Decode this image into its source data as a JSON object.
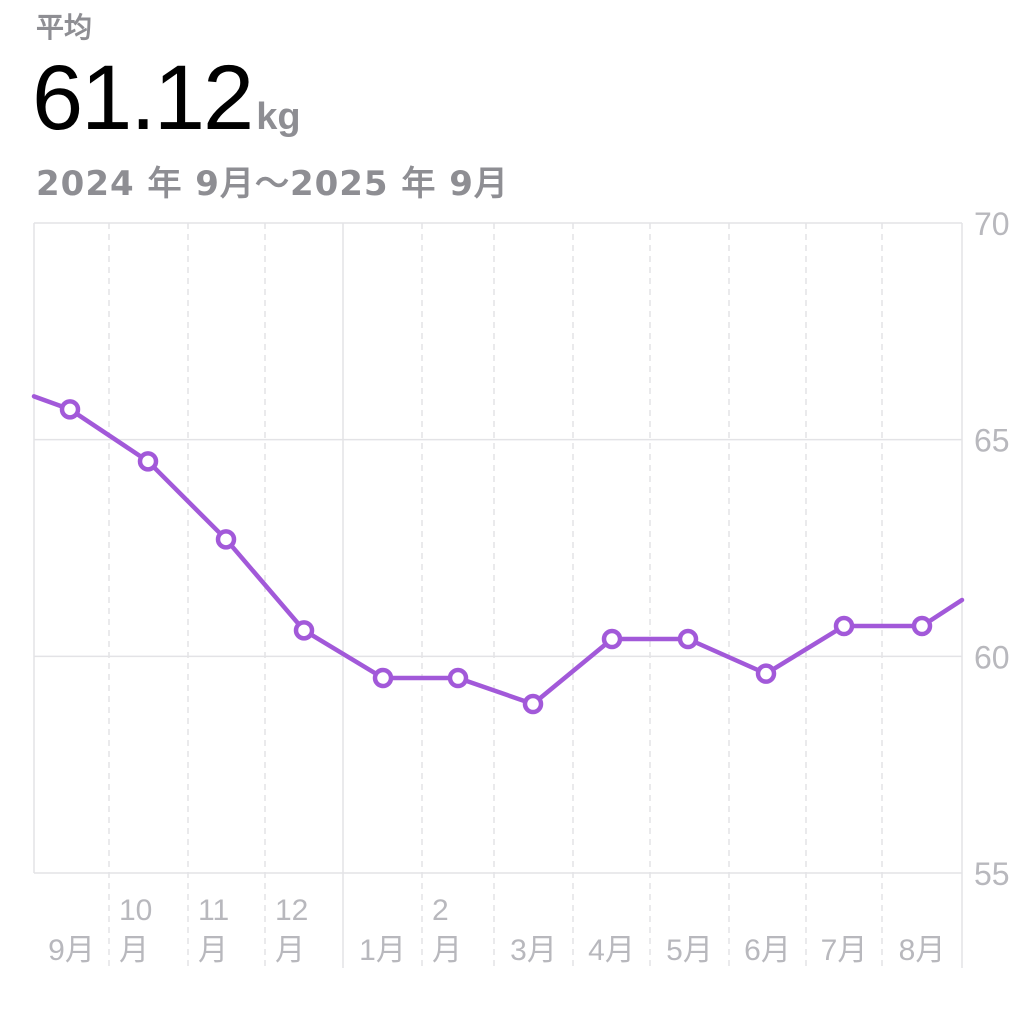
{
  "header": {
    "avg_label": "平均",
    "avg_value": "61.12",
    "avg_unit": "kg",
    "date_range": "2024 年 9月〜2025 年 9月"
  },
  "colors": {
    "line": "#a259d9",
    "grid": "#e3e3e6",
    "axis_text": "#b8b8bd",
    "secondary_text": "#8e8e93"
  },
  "chart_data": {
    "type": "line",
    "title": "",
    "xlabel": "",
    "ylabel": "",
    "ylim": [
      55,
      70
    ],
    "y_ticks": [
      "70",
      "65",
      "60",
      "55"
    ],
    "x_tick_labels": [
      [
        "9月"
      ],
      [
        "10",
        "月"
      ],
      [
        "11",
        "月"
      ],
      [
        "12",
        "月"
      ],
      [
        "1月"
      ],
      [
        "2",
        "月"
      ],
      [
        "3月"
      ],
      [
        "4月"
      ],
      [
        "5月"
      ],
      [
        "6月"
      ],
      [
        "7月"
      ],
      [
        "8月"
      ]
    ],
    "grid": true,
    "series": [
      {
        "values": [
          65.7,
          64.5,
          62.7,
          60.6,
          59.5,
          59.5,
          58.9,
          60.4,
          60.4,
          59.6,
          60.7,
          60.7
        ]
      }
    ],
    "edge_values": {
      "start": 66.0,
      "end": 61.3
    }
  }
}
